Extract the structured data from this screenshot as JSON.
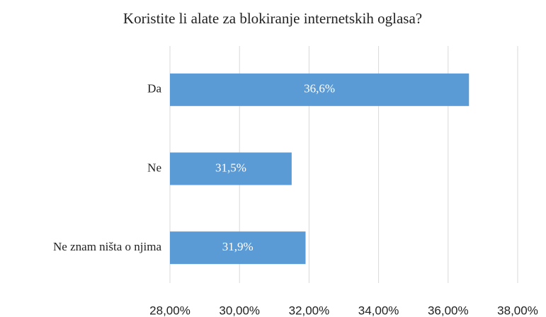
{
  "chart_data": {
    "type": "bar",
    "orientation": "horizontal",
    "title": "Koristite li alate za blokiranje internetskih oglasa?",
    "categories": [
      "Da",
      "Ne",
      "Ne znam ništa o njima"
    ],
    "values": [
      36.6,
      31.5,
      31.9
    ],
    "value_labels": [
      "36,6%",
      "31,5%",
      "31,9%"
    ],
    "color": "#5b9bd5",
    "xlim": [
      28,
      38
    ],
    "xticks": [
      {
        "value": 28,
        "label": "28,00%"
      },
      {
        "value": 30,
        "label": "30,00%"
      },
      {
        "value": 32,
        "label": "32,00%"
      },
      {
        "value": 34,
        "label": "34,00%"
      },
      {
        "value": 36,
        "label": "36,00%"
      },
      {
        "value": 38,
        "label": "38,00%"
      }
    ],
    "grid": true
  }
}
